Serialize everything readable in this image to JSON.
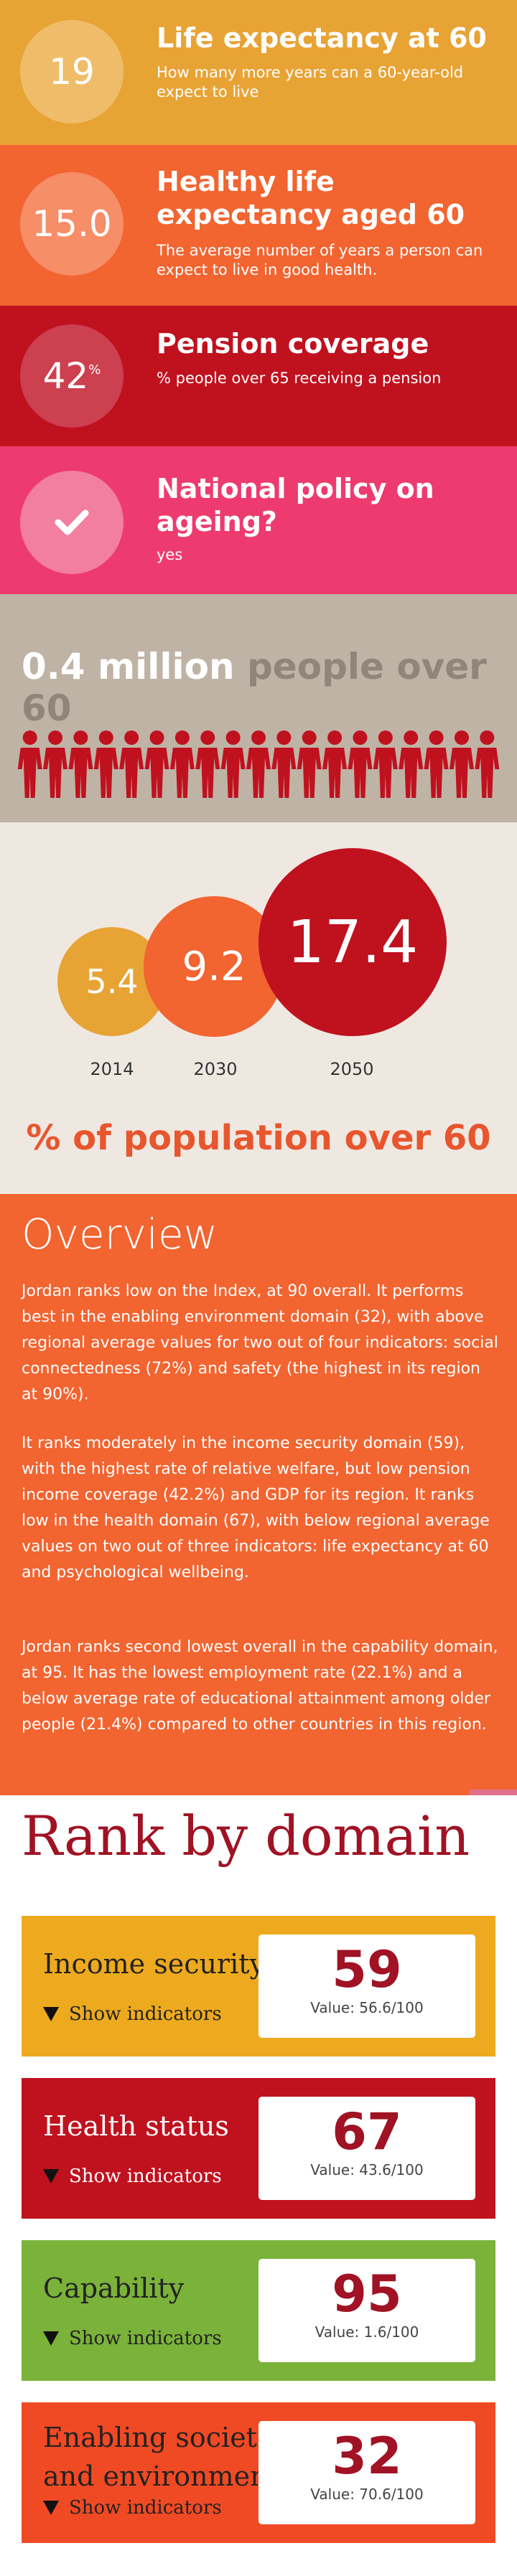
{
  "stats": [
    {
      "value": "19",
      "sup": "",
      "title": "Life expectancy at 60",
      "desc": "How many more years can a 60-year-old expect to live"
    },
    {
      "value": "15.0",
      "sup": "",
      "title": "Healthy life expectancy aged 60",
      "desc": "The average number of years a person can expect to live in good health."
    },
    {
      "value": "42",
      "sup": "%",
      "title": "Pension coverage",
      "desc": "% people over 65 receiving a pension"
    },
    {
      "value": "",
      "sup": "",
      "title": "National policy on ageing?",
      "desc": "yes"
    }
  ],
  "population": {
    "number": "0.4 million",
    "label": "people over 60",
    "people_icon_count": 19
  },
  "future": {
    "bubbles": [
      {
        "value": "5.4",
        "year": "2014"
      },
      {
        "value": "9.2",
        "year": "2030"
      },
      {
        "value": "17.4",
        "year": "2050"
      }
    ],
    "title": "% of population over 60"
  },
  "overview": {
    "title": "Overview",
    "paragraphs": [
      "Jordan ranks low on the Index, at 90 overall. It performs best in the enabling environment domain (32), with above regional average values for two out of four indicators: social connectedness (72%) and safety (the highest in its region at 90%).",
      "It ranks moderately in the income security domain (59), with the highest rate of relative welfare, but low pension income coverage (42.2%) and GDP for its region. It ranks low in the health domain (67), with below regional average values on two out of three indicators: life expectancy at 60 and psychological wellbeing.",
      "Jordan ranks second lowest overall in the capability domain, at 95. It has the lowest employment rate (22.1%) and a below average rate of educational attainment among older people (21.4%) compared to other countries in this region."
    ]
  },
  "rank": {
    "title": "Rank by domain",
    "show_label": "Show indicators",
    "domains": [
      {
        "name": "Income security",
        "rank": "59",
        "value": "Value: 56.6/100"
      },
      {
        "name": "Health status",
        "rank": "67",
        "value": "Value: 43.6/100"
      },
      {
        "name": "Capability",
        "rank": "95",
        "value": "Value: 1.6/100"
      },
      {
        "name": "Enabling societies and environment",
        "rank": "32",
        "value": "Value: 70.6/100"
      }
    ]
  },
  "colors": {
    "life_expectancy": "#e8a335",
    "healthy_life": "#f26430",
    "pension": "#c0111f",
    "policy": "#ee3b6f",
    "population_bg": "#bfb3a5",
    "people_icon": "#c0111f",
    "future_bg": "#efe8e1",
    "overview_bg": "#f26430",
    "income_card": "#eeaa1e",
    "health_card": "#c0111f",
    "capability_card": "#7ab23a",
    "enabling_card": "#f04a24"
  },
  "icons": {
    "policy": "checkmark-icon",
    "people": "person-icon",
    "toggle": "triangle-down-icon"
  }
}
